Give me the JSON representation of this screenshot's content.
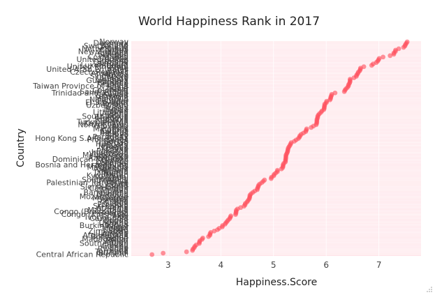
{
  "chart_data": {
    "type": "scatter",
    "title": "World Happiness Rank in 2017",
    "xlabel": "Happiness.Score",
    "ylabel": "Country",
    "xlim": [
      2.3,
      7.8
    ],
    "x_ticks": [
      3,
      4,
      5,
      6,
      7
    ],
    "grid": true,
    "point_color": "#ff4d5a",
    "plot_background": "#ffe3e8",
    "countries": [
      "Norway",
      "Denmark",
      "Iceland",
      "Switzerland",
      "Finland",
      "Netherlands",
      "Canada",
      "New Zealand",
      "Australia",
      "Sweden",
      "Israel",
      "Costa Rica",
      "Austria",
      "United States",
      "Ireland",
      "Germany",
      "Belgium",
      "Luxembourg",
      "United Kingdom",
      "Chile",
      "United Arab Emirates",
      "Brazil",
      "Czech Republic",
      "Argentina",
      "Mexico",
      "Singapore",
      "Malta",
      "Uruguay",
      "Guatemala",
      "Panama",
      "France",
      "Thailand",
      "Taiwan Province of China",
      "Spain",
      "Qatar",
      "Colombia",
      "Saudi Arabia",
      "Trinidad and Tobago",
      "Kuwait",
      "Slovakia",
      "Bahrain",
      "Malaysia",
      "Nicaragua",
      "Ecuador",
      "El Salvador",
      "Poland",
      "Uzbekistan",
      "Italy",
      "Russia",
      "Belize",
      "Japan",
      "Lithuania",
      "Algeria",
      "Latvia",
      "South Korea",
      "Moldova",
      "Romania",
      "Bolivia",
      "Turkmenistan",
      "Kazakhstan",
      "North Cyprus",
      "Slovenia",
      "Peru",
      "Mauritius",
      "Cyprus",
      "Estonia",
      "Belarus",
      "Libya",
      "Turkey",
      "Paraguay",
      "Hong Kong S.A.R., China",
      "Philippines",
      "Serbia",
      "Jordan",
      "Hungary",
      "Jamaica",
      "Croatia",
      "Kosovo",
      "China",
      "Pakistan",
      "Indonesia",
      "Venezuela",
      "Montenegro",
      "Morocco",
      "Azerbaijan",
      "Dominican Republic",
      "Greece",
      "Lebanon",
      "Portugal",
      "Bosnia and Herzegovina",
      "Honduras",
      "Macedonia",
      "Somalia",
      "Vietnam",
      "Nigeria",
      "Tajikistan",
      "Bhutan",
      "Kyrgyzstan",
      "Nepal",
      "Mongolia",
      "South Africa",
      "Tunisia",
      "Palestinian Territories",
      "Egypt",
      "Bulgaria",
      "Sierra Leone",
      "Cameroon",
      "Iran",
      "Albania",
      "Bangladesh",
      "Namibia",
      "Kenya",
      "Mozambique",
      "Myanmar",
      "Senegal",
      "Zambia",
      "Iraq",
      "Gabon",
      "Ethiopia",
      "Sri Lanka",
      "Armenia",
      "India",
      "Mauritania",
      "Congo (Brazzaville)",
      "Georgia",
      "Congo (Kinshasa)",
      "Mali",
      "Ivory Coast",
      "Cambodia",
      "Sudan",
      "Ghana",
      "Ukraine",
      "Uganda",
      "Burkina Faso",
      "Niger",
      "Malawi",
      "Chad",
      "Zimbabwe",
      "Lesotho",
      "Angola",
      "Afghanistan",
      "Botswana",
      "Benin",
      "Madagascar",
      "Haiti",
      "Yemen",
      "South Sudan",
      "Liberia",
      "Guinea",
      "Togo",
      "Rwanda",
      "Syria",
      "Tanzania",
      "Burundi",
      "Central African Republic"
    ],
    "labeled_countries": [
      "Norway",
      "Switzerland",
      "Netherlands",
      "New Zealand",
      "Costa Rica",
      "United States",
      "United Arab Emirates",
      "Czech Republic",
      "Guatemala",
      "Taiwan Province of China",
      "Trinidad and Tobago",
      "Uzbekistan",
      "Lithuania",
      "South Korea",
      "Turkmenistan",
      "Hong Kong S.A.R., China",
      "Montenegro",
      "Dominican Republic",
      "Bosnia and Herzegovina",
      "Palestinian Territories",
      "Sierra Leone",
      "Bangladesh",
      "Mozambique",
      "Congo (Brazzaville)",
      "Congo (Kinshasa)",
      "Ivory Coast",
      "Burkina Faso",
      "Afghanistan",
      "South Sudan",
      "Central African Republic"
    ],
    "scores": [
      7.537,
      7.522,
      7.504,
      7.494,
      7.469,
      7.377,
      7.316,
      7.314,
      7.284,
      7.284,
      7.213,
      7.079,
      7.006,
      6.993,
      6.977,
      6.951,
      6.891,
      6.863,
      6.714,
      6.652,
      6.648,
      6.635,
      6.609,
      6.599,
      6.578,
      6.572,
      6.527,
      6.454,
      6.454,
      6.452,
      6.442,
      6.424,
      6.422,
      6.403,
      6.375,
      6.357,
      6.344,
      6.168,
      6.105,
      6.098,
      6.087,
      6.084,
      6.071,
      6.008,
      6.003,
      5.973,
      5.971,
      5.964,
      5.963,
      5.956,
      5.92,
      5.902,
      5.872,
      5.85,
      5.838,
      5.838,
      5.825,
      5.823,
      5.822,
      5.819,
      5.81,
      5.758,
      5.715,
      5.629,
      5.621,
      5.611,
      5.569,
      5.525,
      5.5,
      5.493,
      5.472,
      5.43,
      5.395,
      5.336,
      5.324,
      5.311,
      5.293,
      5.279,
      5.273,
      5.269,
      5.262,
      5.25,
      5.237,
      5.235,
      5.234,
      5.23,
      5.227,
      5.225,
      5.195,
      5.182,
      5.181,
      5.175,
      5.151,
      5.074,
      5.074,
      5.041,
      5.011,
      5.004,
      4.962,
      4.955,
      4.829,
      4.805,
      4.775,
      4.735,
      4.714,
      4.709,
      4.695,
      4.692,
      4.644,
      4.608,
      4.574,
      4.553,
      4.55,
      4.545,
      4.535,
      4.514,
      4.497,
      4.465,
      4.46,
      4.44,
      4.376,
      4.315,
      4.292,
      4.291,
      4.286,
      4.28,
      4.19,
      4.18,
      4.168,
      4.139,
      4.12,
      4.096,
      4.081,
      4.032,
      4.028,
      3.97,
      3.936,
      3.875,
      3.808,
      3.795,
      3.794,
      3.766,
      3.657,
      3.644,
      3.603,
      3.593,
      3.591,
      3.533,
      3.507,
      3.495,
      3.471,
      3.462,
      3.349,
      2.905,
      2.693
    ]
  },
  "ui": {
    "resize_icon": "resize-grip-icon"
  }
}
